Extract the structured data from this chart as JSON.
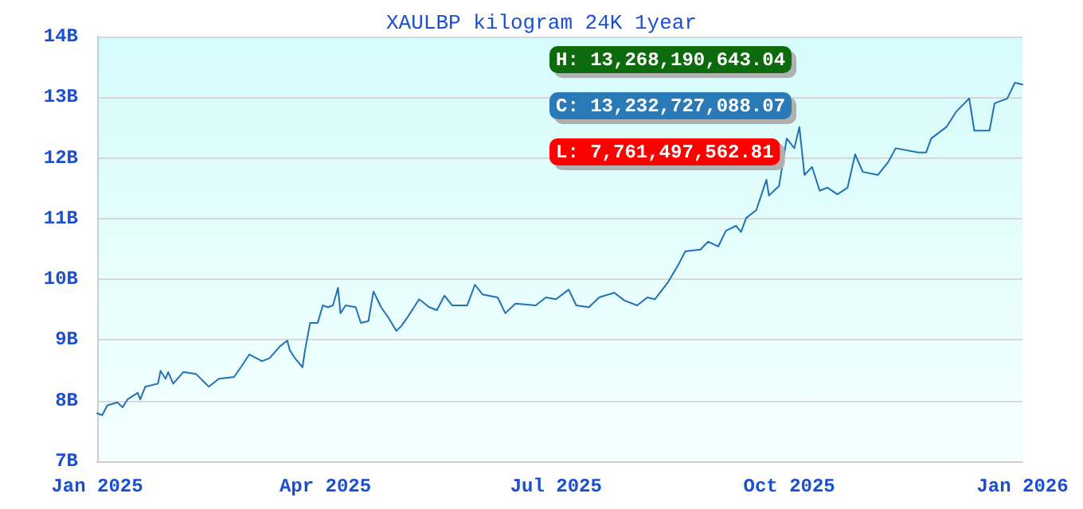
{
  "chart_data": {
    "type": "line",
    "title": "XAULBP kilogram 24K 1year",
    "x": [
      "2025-01-01",
      "2025-01-03",
      "2025-01-05",
      "2025-01-09",
      "2025-01-11",
      "2025-01-13",
      "2025-01-17",
      "2025-01-18",
      "2025-01-20",
      "2025-01-25",
      "2025-01-26",
      "2025-01-28",
      "2025-01-29",
      "2025-01-31",
      "2025-02-04",
      "2025-02-09",
      "2025-02-14",
      "2025-02-18",
      "2025-02-24",
      "2025-02-27",
      "2025-03-02",
      "2025-03-07",
      "2025-03-10",
      "2025-03-14",
      "2025-03-17",
      "2025-03-18",
      "2025-03-20",
      "2025-03-23",
      "2025-03-24",
      "2025-03-26",
      "2025-03-29",
      "2025-03-31",
      "2025-04-02",
      "2025-04-04",
      "2025-04-06",
      "2025-04-07",
      "2025-04-09",
      "2025-04-13",
      "2025-04-15",
      "2025-04-18",
      "2025-04-20",
      "2025-04-23",
      "2025-04-26",
      "2025-04-29",
      "2025-05-01",
      "2025-05-04",
      "2025-05-06",
      "2025-05-08",
      "2025-05-12",
      "2025-05-15",
      "2025-05-18",
      "2025-05-21",
      "2025-05-27",
      "2025-05-30",
      "2025-06-02",
      "2025-06-08",
      "2025-06-11",
      "2025-06-15",
      "2025-06-23",
      "2025-06-27",
      "2025-07-01",
      "2025-07-06",
      "2025-07-09",
      "2025-07-14",
      "2025-07-18",
      "2025-07-24",
      "2025-07-28",
      "2025-08-02",
      "2025-08-06",
      "2025-08-09",
      "2025-08-14",
      "2025-08-18",
      "2025-08-21",
      "2025-08-27",
      "2025-08-30",
      "2025-09-03",
      "2025-09-06",
      "2025-09-10",
      "2025-09-12",
      "2025-09-14",
      "2025-09-18",
      "2025-09-22",
      "2025-09-23",
      "2025-09-27",
      "2025-09-30",
      "2025-10-03",
      "2025-10-05",
      "2025-10-07",
      "2025-10-10",
      "2025-10-13",
      "2025-10-16",
      "2025-10-20",
      "2025-10-24",
      "2025-10-27",
      "2025-10-30",
      "2025-11-05",
      "2025-11-09",
      "2025-11-12",
      "2025-11-21",
      "2025-11-24",
      "2025-11-26",
      "2025-12-02",
      "2025-12-06",
      "2025-12-11",
      "2025-12-13",
      "2025-12-19",
      "2025-12-21",
      "2025-12-26",
      "2025-12-29",
      "2026-01-01"
    ],
    "series": [
      {
        "color": "#2171b5",
        "values": [
          7.79,
          7.76,
          7.92,
          7.97,
          7.89,
          8.02,
          8.13,
          8.02,
          8.23,
          8.28,
          8.49,
          8.36,
          8.47,
          8.28,
          8.47,
          8.44,
          8.23,
          8.36,
          8.39,
          8.57,
          8.76,
          8.65,
          8.7,
          8.89,
          8.99,
          8.83,
          8.7,
          8.55,
          8.83,
          9.28,
          9.28,
          9.57,
          9.54,
          9.57,
          9.86,
          9.44,
          9.57,
          9.54,
          9.28,
          9.31,
          9.8,
          9.54,
          9.36,
          9.15,
          9.23,
          9.41,
          9.54,
          9.67,
          9.54,
          9.49,
          9.73,
          9.57,
          9.57,
          9.91,
          9.75,
          9.7,
          9.44,
          9.6,
          9.57,
          9.7,
          9.67,
          9.83,
          9.57,
          9.54,
          9.7,
          9.78,
          9.65,
          9.57,
          9.7,
          9.67,
          9.94,
          10.22,
          10.46,
          10.49,
          10.62,
          10.54,
          10.8,
          10.88,
          10.78,
          11.01,
          11.14,
          11.64,
          11.38,
          11.54,
          12.32,
          12.16,
          12.51,
          11.72,
          11.85,
          11.46,
          11.51,
          11.4,
          11.51,
          12.06,
          11.77,
          11.72,
          11.93,
          12.16,
          12.09,
          12.09,
          12.32,
          12.51,
          12.77,
          12.98,
          12.45,
          12.45,
          12.9,
          12.98,
          13.24,
          13.21
        ]
      }
    ],
    "xlim": [
      "2025-01-01",
      "2026-01-01"
    ],
    "xticks": [
      {
        "value": "2025-01-01",
        "label": "Jan 2025"
      },
      {
        "value": "2025-04-01",
        "label": "Apr 2025"
      },
      {
        "value": "2025-07-01",
        "label": "Jul 2025"
      },
      {
        "value": "2025-10-01",
        "label": "Oct 2025"
      },
      {
        "value": "2026-01-01",
        "label": "Jan 2026"
      }
    ],
    "ylim": [
      7,
      14
    ],
    "yticks": [
      {
        "value": 7,
        "label": "7B"
      },
      {
        "value": 8,
        "label": "8B"
      },
      {
        "value": 9,
        "label": "9B"
      },
      {
        "value": 10,
        "label": "10B"
      },
      {
        "value": 11,
        "label": "11B"
      },
      {
        "value": 12,
        "label": "12B"
      },
      {
        "value": 13,
        "label": "13B"
      },
      {
        "value": 14,
        "label": "14B"
      }
    ],
    "grid": "y",
    "marker": "none",
    "line_style": "solid",
    "annotations": [
      "H: 13,268,190,643.04",
      "C: 13,232,727,088.07",
      "L: 7,761,497,562.81"
    ]
  }
}
